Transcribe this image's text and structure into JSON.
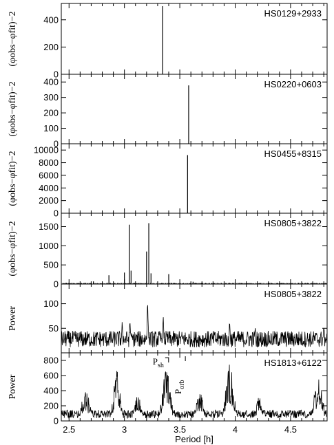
{
  "chart_data": [
    {
      "type": "line",
      "panel_label": "HS0129+2933",
      "ylabel": "(φobs−φfit)−2",
      "ylim": [
        0,
        520
      ],
      "yticks": [
        0,
        200,
        400
      ],
      "xlim": [
        2.43,
        4.83
      ],
      "xticks": [
        2.5,
        3,
        3.5,
        4,
        4.5
      ],
      "spikes": [
        {
          "x": 3.345,
          "y": 500
        }
      ],
      "baseline": 1
    },
    {
      "type": "line",
      "panel_label": "HS0220+0603",
      "ylabel": "(φobs−φfit)−2",
      "ylim": [
        0,
        450
      ],
      "yticks": [
        0,
        100,
        200,
        300,
        400
      ],
      "xlim": [
        2.43,
        4.83
      ],
      "xticks": [
        2.5,
        3,
        3.5,
        4,
        4.5
      ],
      "spikes": [
        {
          "x": 3.58,
          "y": 378
        }
      ],
      "baseline": 1
    },
    {
      "type": "line",
      "panel_label": "HS0455+8315",
      "ylabel": "(φobs−φfit)−2",
      "ylim": [
        0,
        11000
      ],
      "yticks": [
        0,
        2000,
        4000,
        6000,
        8000,
        10000
      ],
      "xlim": [
        2.43,
        4.83
      ],
      "xticks": [
        2.5,
        3,
        3.5,
        4,
        4.5
      ],
      "spikes": [
        {
          "x": 3.57,
          "y": 9200
        }
      ],
      "baseline": 20
    },
    {
      "type": "line",
      "panel_label": "HS0805+3822",
      "ylabel": "(φobs−φfit)−2",
      "ylim": [
        0,
        1850
      ],
      "yticks": [
        0,
        500,
        1000,
        1500
      ],
      "xlim": [
        2.43,
        4.83
      ],
      "xticks": [
        2.5,
        3,
        3.5,
        4,
        4.5
      ],
      "spikes": [
        {
          "x": 2.72,
          "y": 70
        },
        {
          "x": 2.86,
          "y": 230
        },
        {
          "x": 3.0,
          "y": 300
        },
        {
          "x": 3.045,
          "y": 1550
        },
        {
          "x": 3.06,
          "y": 350
        },
        {
          "x": 3.2,
          "y": 850
        },
        {
          "x": 3.22,
          "y": 1590
        },
        {
          "x": 3.24,
          "y": 280
        },
        {
          "x": 3.4,
          "y": 260
        },
        {
          "x": 3.62,
          "y": 60
        },
        {
          "x": 4.0,
          "y": 50
        },
        {
          "x": 4.3,
          "y": 40
        }
      ],
      "baseline": 25
    },
    {
      "type": "line",
      "panel_label": "HS0805+3822",
      "ylabel": "Power",
      "ylim": [
        0,
        140
      ],
      "yticks": [
        50,
        100
      ],
      "xlim": [
        2.43,
        4.83
      ],
      "xticks": [
        2.5,
        3,
        3.5,
        4,
        4.5
      ],
      "noise_level": 28,
      "features": [
        {
          "x": 3.21,
          "y": 128
        },
        {
          "x": 3.05,
          "y": 85
        },
        {
          "x": 2.98,
          "y": 70
        },
        {
          "x": 3.35,
          "y": 80
        },
        {
          "x": 3.95,
          "y": 78
        },
        {
          "x": 4.18,
          "y": 65
        },
        {
          "x": 4.8,
          "y": 65
        }
      ]
    },
    {
      "type": "line",
      "panel_label": "HS1813+6122",
      "ylabel": "Power",
      "ylim": [
        0,
        900
      ],
      "yticks": [
        0,
        200,
        400,
        600,
        800
      ],
      "xlim": [
        2.43,
        4.83
      ],
      "xticks": [
        2.5,
        3,
        3.5,
        4,
        4.5
      ],
      "xlabel": "Period [h]",
      "noise_level": 90,
      "humps": [
        {
          "x": 2.65,
          "y": 420,
          "w": 0.05
        },
        {
          "x": 2.93,
          "y": 680,
          "w": 0.04
        },
        {
          "x": 3.12,
          "y": 350,
          "w": 0.04
        },
        {
          "x": 3.38,
          "y": 700,
          "w": 0.05
        },
        {
          "x": 3.68,
          "y": 380,
          "w": 0.05
        },
        {
          "x": 3.95,
          "y": 760,
          "w": 0.05
        },
        {
          "x": 4.22,
          "y": 330,
          "w": 0.04
        },
        {
          "x": 4.75,
          "y": 600,
          "w": 0.05
        }
      ],
      "annotations": [
        {
          "text": "P",
          "sub": "sh",
          "x": 3.38
        },
        {
          "text": "P",
          "sub": "orb",
          "x": 3.55
        }
      ]
    }
  ]
}
